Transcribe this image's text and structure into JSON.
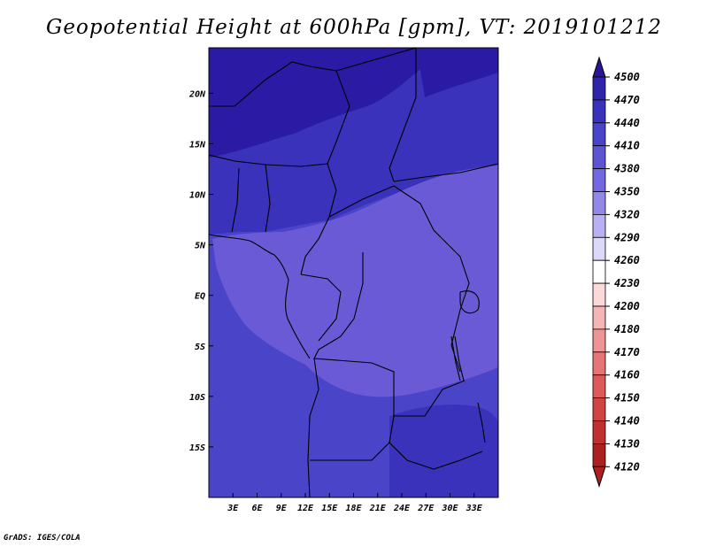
{
  "title": "Geopotential Height at 600hPa [gpm], VT: 2019101212",
  "credit": "GrADS: IGES/COLA",
  "map": {
    "lon_range": [
      0,
      36
    ],
    "lat_range": [
      -20,
      24.5
    ],
    "x_ticks": [
      {
        "lon": 3,
        "label": "3E"
      },
      {
        "lon": 6,
        "label": "6E"
      },
      {
        "lon": 9,
        "label": "9E"
      },
      {
        "lon": 12,
        "label": "12E"
      },
      {
        "lon": 15,
        "label": "15E"
      },
      {
        "lon": 18,
        "label": "18E"
      },
      {
        "lon": 21,
        "label": "21E"
      },
      {
        "lon": 24,
        "label": "24E"
      },
      {
        "lon": 27,
        "label": "27E"
      },
      {
        "lon": 30,
        "label": "30E"
      },
      {
        "lon": 33,
        "label": "33E"
      }
    ],
    "y_ticks": [
      {
        "lat": 20,
        "label": "20N"
      },
      {
        "lat": 15,
        "label": "15N"
      },
      {
        "lat": 10,
        "label": "10N"
      },
      {
        "lat": 5,
        "label": "5N"
      },
      {
        "lat": 0,
        "label": "EQ"
      },
      {
        "lat": -5,
        "label": "5S"
      },
      {
        "lat": -10,
        "label": "10S"
      },
      {
        "lat": -15,
        "label": "15S"
      }
    ],
    "colors": {
      "band_4470": "#2b1aa3",
      "band_4440": "#3a32bb",
      "band_4410": "#4a44c8",
      "band_4380": "#6a5ad6"
    }
  },
  "colorbar": {
    "levels": [
      "4500",
      "4470",
      "4440",
      "4410",
      "4380",
      "4350",
      "4320",
      "4290",
      "4260",
      "4230",
      "4200",
      "4180",
      "4170",
      "4160",
      "4150",
      "4140",
      "4130",
      "4120"
    ],
    "colors": [
      "#2a1596",
      "#2f24aa",
      "#3a32bb",
      "#4a44c8",
      "#5e55d3",
      "#7468e0",
      "#9288ea",
      "#b8b0f3",
      "#dcd8fa",
      "#ffffff",
      "#fbd9d9",
      "#f5b5b5",
      "#ee9494",
      "#e67676",
      "#dc5a5a",
      "#d14444",
      "#c13030",
      "#ab2121"
    ]
  }
}
